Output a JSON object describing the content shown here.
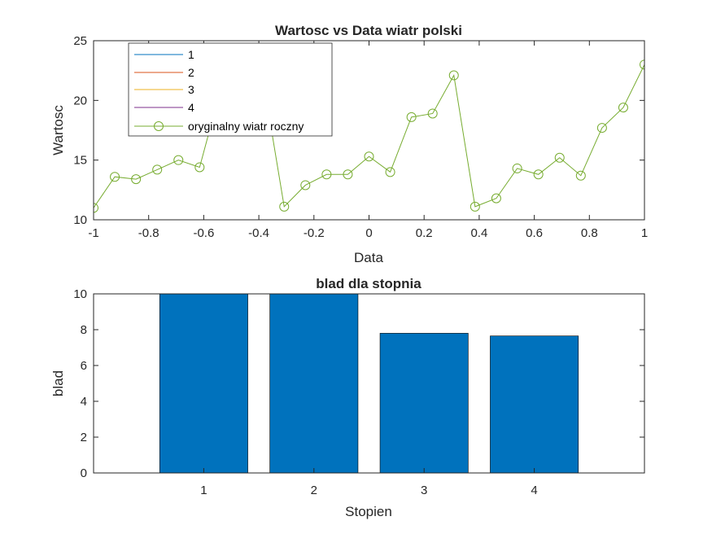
{
  "chart_data": [
    {
      "type": "line",
      "title": "Wartosc vs Data wiatr polski",
      "xlabel": "Data",
      "ylabel": "Wartosc",
      "xlim": [
        -1,
        1
      ],
      "ylim": [
        10,
        25
      ],
      "xticks": [
        -1,
        -0.8,
        -0.6,
        -0.4,
        -0.2,
        0,
        0.2,
        0.4,
        0.6,
        0.8,
        1
      ],
      "xtick_labels": [
        "-1",
        "-0.8",
        "-0.6",
        "-0.4",
        "-0.2",
        "0",
        "0.2",
        "0.4",
        "0.6",
        "0.8",
        "1"
      ],
      "yticks": [
        10,
        15,
        20,
        25
      ],
      "ytick_labels": [
        "10",
        "15",
        "20",
        "25"
      ],
      "grid": false,
      "legend_position": "top-left",
      "series": [
        {
          "name": "1",
          "color": "#0072BD",
          "kind": "polyfit",
          "degree": 1
        },
        {
          "name": "2",
          "color": "#D95319",
          "kind": "polyfit",
          "degree": 2
        },
        {
          "name": "3",
          "color": "#EDB120",
          "kind": "polyfit",
          "degree": 3
        },
        {
          "name": "4",
          "color": "#7E2F8E",
          "kind": "polyfit",
          "degree": 4
        },
        {
          "name": "oryginalny wiatr roczny",
          "color": "#77AC30",
          "kind": "data",
          "marker": "circle",
          "x": [
            -1,
            -0.923,
            -0.846,
            -0.769,
            -0.692,
            -0.615,
            -0.538,
            -0.462,
            -0.385,
            -0.308,
            -0.231,
            -0.154,
            -0.077,
            0,
            0.077,
            0.154,
            0.231,
            0.308,
            0.385,
            0.462,
            0.538,
            0.615,
            0.692,
            0.769,
            0.846,
            0.923,
            1
          ],
          "y": [
            11.0,
            13.6,
            13.4,
            14.2,
            15.0,
            14.4,
            21.0,
            20.0,
            21.8,
            11.1,
            12.9,
            13.8,
            13.8,
            15.3,
            14.0,
            18.6,
            18.9,
            22.1,
            11.1,
            11.8,
            14.3,
            13.8,
            15.2,
            13.7,
            17.7,
            19.4,
            23.0
          ]
        }
      ]
    },
    {
      "type": "bar",
      "title": "blad dla stopnia",
      "xlabel": "Stopien",
      "ylabel": "blad",
      "categories": [
        "1",
        "2",
        "3",
        "4"
      ],
      "values": [
        10.0,
        10.0,
        7.8,
        7.65
      ],
      "ylim": [
        0,
        10
      ],
      "yticks": [
        0,
        2,
        4,
        6,
        8,
        10
      ],
      "ytick_labels": [
        "0",
        "2",
        "4",
        "6",
        "8",
        "10"
      ],
      "color": "#0072BD"
    }
  ]
}
